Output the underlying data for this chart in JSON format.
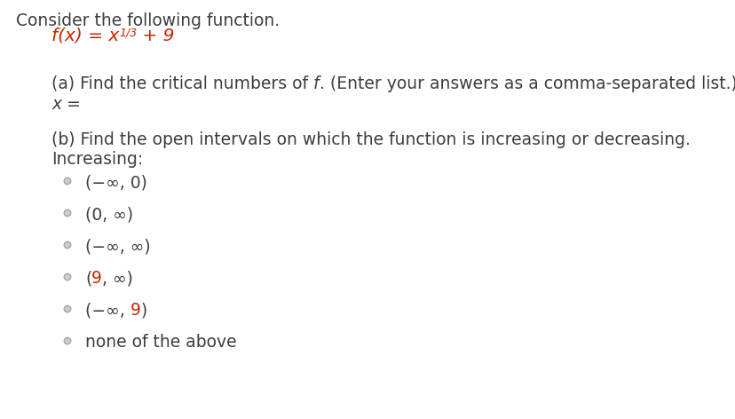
{
  "bg_color": "#ffffff",
  "text_color": "#3d3d3d",
  "option_color": "#2e2e2e",
  "red_color": "#cc2200",
  "radio_color": "#c0c0c0",
  "fig_width": 8.29,
  "fig_height": 4.72,
  "dpi": 100,
  "consider_text": "Consider the following function.",
  "part_a_line1_pre": "(a) Find the critical numbers of ",
  "part_a_f": "f",
  "part_a_line1_post": ". (Enter your answers as a comma-separated list.)",
  "part_a_line2": "x =",
  "part_b_line1": "(b) Find the open intervals on which the function is increasing or decreasing.",
  "part_b_increasing": "Increasing:",
  "options": [
    {
      "pre": "(−∞, 0)",
      "red": "",
      "post": ""
    },
    {
      "pre": "(0, ∞)",
      "red": "",
      "post": ""
    },
    {
      "pre": "(−∞, ∞)",
      "red": "",
      "post": ""
    },
    {
      "pre": "(",
      "red": "9",
      "post": ", ∞)"
    },
    {
      "pre": "(−∞, ",
      "red": "9",
      "post": ")"
    },
    {
      "pre": "none of the above",
      "red": "",
      "post": ""
    }
  ]
}
